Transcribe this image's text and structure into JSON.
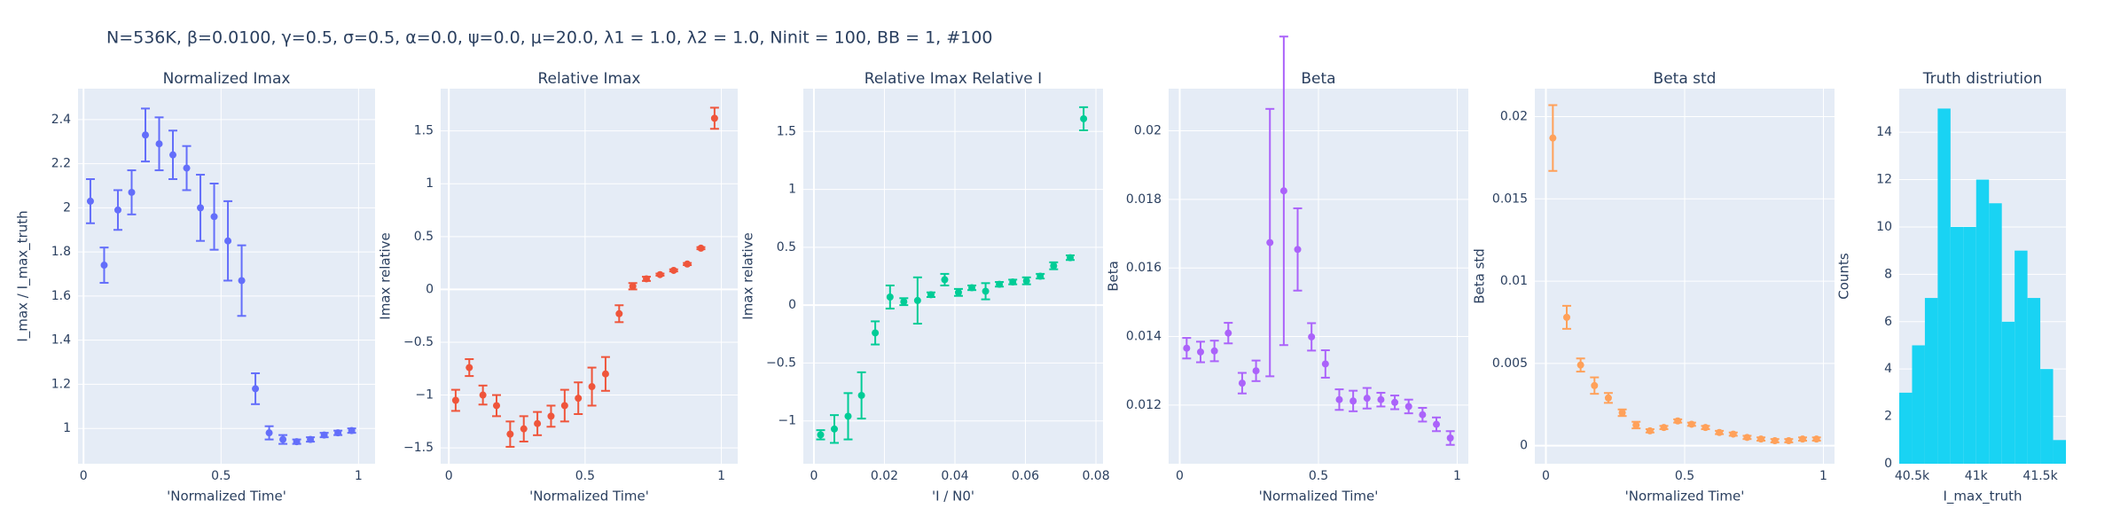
{
  "title": "N=536K, β=0.0100, γ=0.5, σ=0.5,  α=0.0, ψ=0.0, μ=20.0, λ1 = 1.0, λ2 = 1.0, Ninit = 100, BB = 1, #100",
  "chart_data": [
    {
      "type": "errorbar",
      "title": "Normalized Imax",
      "xlabel": "'Normalized Time'",
      "ylabel": "I_max / I_max_truth",
      "color": "#636efa",
      "grid": true,
      "x": [
        0.025,
        0.075,
        0.125,
        0.175,
        0.225,
        0.275,
        0.325,
        0.375,
        0.425,
        0.475,
        0.525,
        0.575,
        0.625,
        0.675,
        0.725,
        0.775,
        0.825,
        0.875,
        0.925,
        0.975
      ],
      "values": [
        2.03,
        1.74,
        1.99,
        2.07,
        2.33,
        2.29,
        2.24,
        2.18,
        2.0,
        1.96,
        1.85,
        1.67,
        1.18,
        0.98,
        0.95,
        0.94,
        0.95,
        0.97,
        0.98,
        0.99
      ],
      "errors": [
        0.1,
        0.08,
        0.09,
        0.1,
        0.12,
        0.12,
        0.11,
        0.1,
        0.15,
        0.15,
        0.18,
        0.16,
        0.07,
        0.03,
        0.02,
        0.01,
        0.01,
        0.01,
        0.01,
        0.01
      ],
      "xlim": [
        -0.02,
        1.06
      ],
      "xticks": [
        0,
        0.5,
        1
      ],
      "ylim": [
        0.84,
        2.54
      ],
      "yticks": [
        1,
        1.2,
        1.4,
        1.6,
        1.8,
        2,
        2.2,
        2.4
      ]
    },
    {
      "type": "errorbar",
      "title": "Relative Imax",
      "xlabel": "'Normalized Time'",
      "ylabel": "Imax relative",
      "color": "#EF553B",
      "grid": true,
      "x": [
        0.025,
        0.075,
        0.125,
        0.175,
        0.225,
        0.275,
        0.325,
        0.375,
        0.425,
        0.475,
        0.525,
        0.575,
        0.625,
        0.675,
        0.725,
        0.775,
        0.825,
        0.875,
        0.925,
        0.975
      ],
      "values": [
        -1.05,
        -0.74,
        -1.0,
        -1.1,
        -1.37,
        -1.32,
        -1.27,
        -1.2,
        -1.1,
        -1.03,
        -0.92,
        -0.8,
        -0.23,
        0.03,
        0.1,
        0.14,
        0.18,
        0.24,
        0.39,
        1.62
      ],
      "errors": [
        0.1,
        0.08,
        0.09,
        0.1,
        0.12,
        0.12,
        0.11,
        0.1,
        0.15,
        0.15,
        0.18,
        0.16,
        0.08,
        0.03,
        0.02,
        0.01,
        0.01,
        0.01,
        0.01,
        0.1
      ],
      "xlim": [
        -0.03,
        1.06
      ],
      "xticks": [
        0,
        0.5,
        1
      ],
      "ylim": [
        -1.65,
        1.9
      ],
      "yticks": [
        {
          "value": -1.5,
          "label": "−1.5"
        },
        {
          "value": -1,
          "label": "−1"
        },
        {
          "value": -0.5,
          "label": "−0.5"
        },
        0,
        0.5,
        1,
        1.5
      ]
    },
    {
      "type": "errorbar",
      "title": "Relative Imax Relative I",
      "xlabel": "'I / N0'",
      "ylabel": "Imax relative",
      "color": "#00cc96",
      "grid": true,
      "x": [
        0.0019,
        0.0058,
        0.0097,
        0.0135,
        0.0174,
        0.0216,
        0.0255,
        0.0294,
        0.0332,
        0.0371,
        0.041,
        0.0448,
        0.0487,
        0.0526,
        0.0564,
        0.0603,
        0.0642,
        0.068,
        0.0727,
        0.0765
      ],
      "values": [
        -1.12,
        -1.07,
        -0.96,
        -0.78,
        -0.24,
        0.07,
        0.03,
        0.04,
        0.09,
        0.22,
        0.11,
        0.15,
        0.12,
        0.18,
        0.2,
        0.21,
        0.25,
        0.34,
        0.41,
        1.61
      ],
      "errors": [
        0.04,
        0.12,
        0.2,
        0.2,
        0.1,
        0.1,
        0.03,
        0.2,
        0.02,
        0.05,
        0.03,
        0.02,
        0.07,
        0.02,
        0.02,
        0.03,
        0.02,
        0.03,
        0.02,
        0.1
      ],
      "xlim": [
        -0.003,
        0.082
      ],
      "xticks": [
        0,
        0.02,
        0.04,
        0.06,
        0.08
      ],
      "ylim": [
        -1.37,
        1.87
      ],
      "yticks": [
        {
          "value": -1,
          "label": "−1"
        },
        {
          "value": -0.5,
          "label": "−0.5"
        },
        0,
        0.5,
        1,
        1.5
      ]
    },
    {
      "type": "errorbar",
      "title": "Beta",
      "xlabel": "'Normalized Time'",
      "ylabel": "Beta",
      "color": "#ab63fa",
      "grid": true,
      "x": [
        0.025,
        0.075,
        0.125,
        0.175,
        0.225,
        0.275,
        0.325,
        0.375,
        0.425,
        0.475,
        0.525,
        0.575,
        0.625,
        0.675,
        0.725,
        0.775,
        0.825,
        0.875,
        0.925,
        0.975
      ],
      "values": [
        0.01366,
        0.01355,
        0.01358,
        0.0141,
        0.01264,
        0.013,
        0.01674,
        0.01825,
        0.01654,
        0.01399,
        0.0132,
        0.01216,
        0.01212,
        0.0122,
        0.01216,
        0.01208,
        0.01196,
        0.01172,
        0.01144,
        0.01104
      ],
      "errors": [
        0.0003,
        0.0003,
        0.0003,
        0.0003,
        0.0003,
        0.0003,
        0.0039,
        0.0045,
        0.0012,
        0.0004,
        0.0004,
        0.0003,
        0.0003,
        0.0003,
        0.0002,
        0.0002,
        0.0002,
        0.0002,
        0.0002,
        0.0002
      ],
      "xlim": [
        -0.04,
        1.04
      ],
      "xticks": [
        0,
        0.5,
        1
      ],
      "ylim": [
        0.01029,
        0.02123
      ],
      "yticks": [
        0.012,
        0.014,
        0.016,
        0.018,
        0.02
      ]
    },
    {
      "type": "errorbar",
      "title": "Beta std",
      "xlabel": "'Normalized Time'",
      "ylabel": "Beta std",
      "color": "#FFA15A",
      "grid": true,
      "x": [
        0.025,
        0.075,
        0.125,
        0.175,
        0.225,
        0.275,
        0.325,
        0.375,
        0.425,
        0.475,
        0.525,
        0.575,
        0.625,
        0.675,
        0.725,
        0.775,
        0.825,
        0.875,
        0.925,
        0.975
      ],
      "values": [
        0.0187,
        0.0078,
        0.0049,
        0.00365,
        0.0029,
        0.002,
        0.00125,
        0.0009,
        0.0011,
        0.0015,
        0.0013,
        0.0011,
        0.0008,
        0.0007,
        0.0005,
        0.0004,
        0.0003,
        0.0003,
        0.0004,
        0.0004
      ],
      "errors": [
        0.002,
        0.0007,
        0.0004,
        0.0005,
        0.0003,
        0.0002,
        0.0002,
        0.0001,
        0.0001,
        0.0001,
        0.0001,
        0.0001,
        0.0001,
        0.0001,
        0.0001,
        0.0001,
        0.0001,
        0.0001,
        0.0001,
        0.0001
      ],
      "xlim": [
        -0.04,
        1.04
      ],
      "xticks": [
        0,
        0.5,
        1
      ],
      "ylim": [
        -0.0011,
        0.0217
      ],
      "yticks": [
        0,
        0.005,
        0.01,
        0.015,
        0.02
      ]
    },
    {
      "type": "histogram",
      "title": "Truth distriution",
      "xlabel": "I_max_truth",
      "ylabel": "Counts",
      "color": "#19d3f3",
      "grid": true,
      "bins": [
        40400,
        40500,
        40600,
        40700,
        40800,
        40900,
        41000,
        41100,
        41200,
        41300,
        41400,
        41500,
        41600,
        41700
      ],
      "counts": [
        3,
        5,
        7,
        15,
        10,
        10,
        12,
        11,
        6,
        9,
        7,
        4,
        1
      ],
      "xlim": [
        40400,
        41700
      ],
      "xticks": [
        {
          "value": 40500,
          "label": "40.5k"
        },
        {
          "value": 41000,
          "label": "41k"
        },
        {
          "value": 41500,
          "label": "41.5k"
        }
      ],
      "ylim": [
        0,
        15.84
      ],
      "yticks": [
        0,
        2,
        4,
        6,
        8,
        10,
        12,
        14
      ]
    }
  ]
}
